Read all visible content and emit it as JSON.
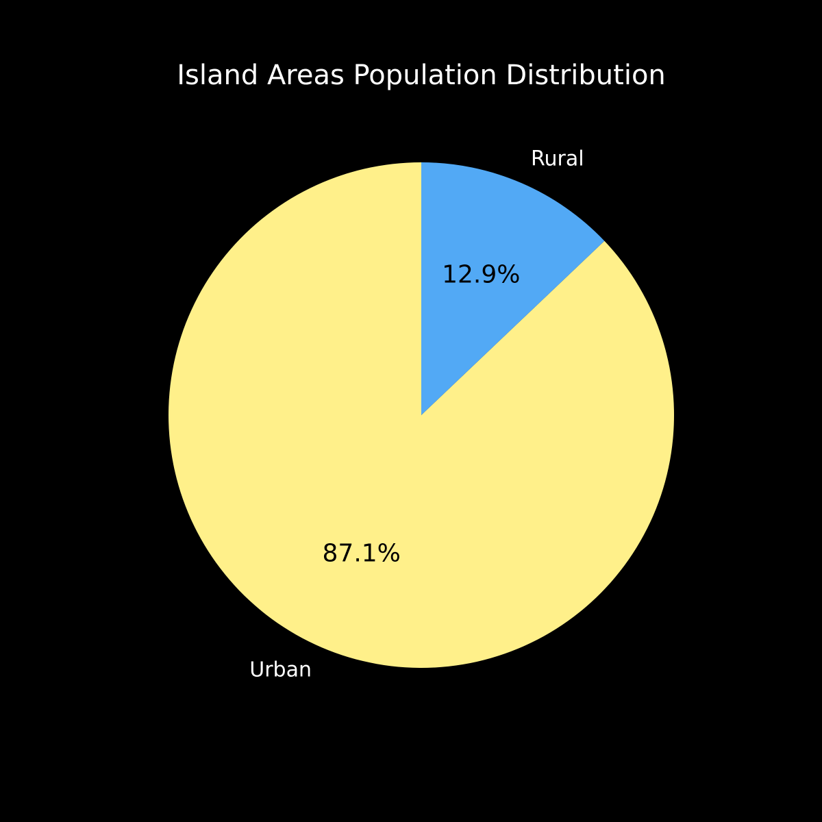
{
  "chart_data": {
    "type": "pie",
    "title": "Island Areas Population Distribution",
    "categories": [
      "Urban",
      "Rural"
    ],
    "values": [
      87.1,
      12.9
    ],
    "value_labels": [
      "87.1%",
      "12.9%"
    ],
    "colors": [
      "#fff08a",
      "#52a9f5"
    ],
    "start_angle": 90,
    "counterclockwise": true
  }
}
